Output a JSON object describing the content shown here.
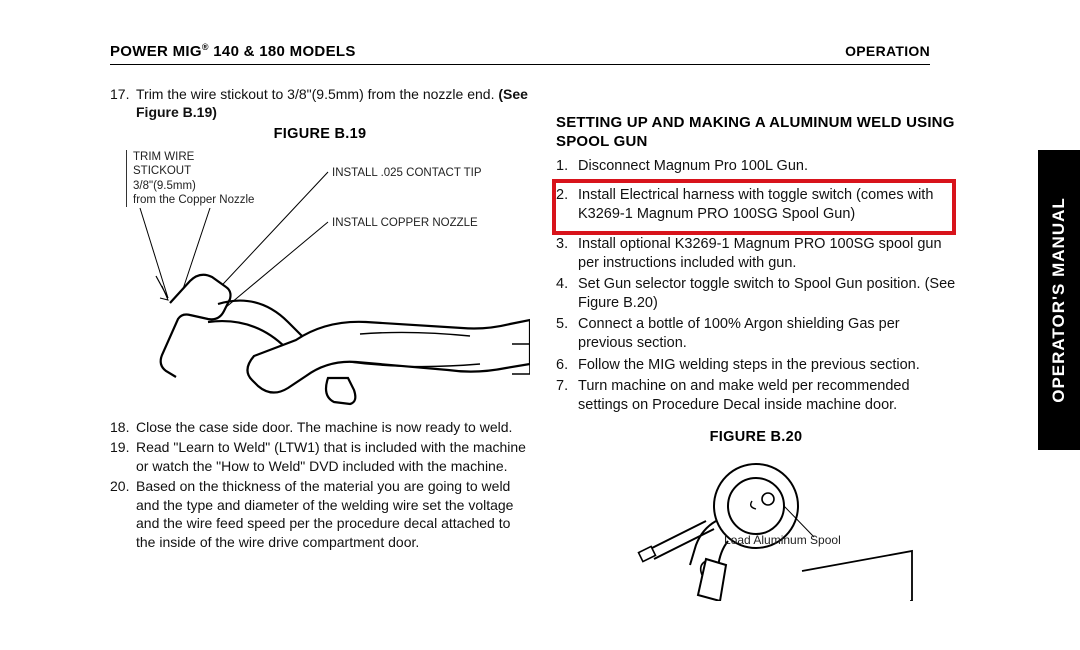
{
  "header": {
    "left_prefix": "POWER MIG",
    "left_suffix": " 140 & 180 MODELS",
    "right": "OPERATION"
  },
  "side_tab": "OPERATOR'S MANUAL",
  "colors": {
    "highlight_border": "#d8131b",
    "text": "#111111",
    "rule": "#000000"
  },
  "left": {
    "step17_pre": "Trim the wire stickout to 3/8\"(9.5mm) from the nozzle end. ",
    "step17_bold": "(See Figure B.19)",
    "figure19_title": "FIGURE B.19",
    "fig19_labels": {
      "trim1": "TRIM WIRE",
      "trim2": "STICKOUT",
      "trim3": "3/8\"(9.5mm)",
      "trim4": "from the Copper Nozzle",
      "install_tip": "INSTALL .025 CONTACT TIP",
      "install_nozzle": "INSTALL COPPER NOZZLE"
    },
    "step18": "Close the case side door. The machine is now ready to weld.",
    "step19": "Read \"Learn to Weld\" (LTW1) that is included with the machine or watch the \"How to Weld\" DVD included with the machine.",
    "step20": "Based on the thickness of the material you are going to weld and the type and diameter of the welding wire set the voltage and the wire feed speed per the procedure decal attached to the inside of the wire drive compartment door."
  },
  "right": {
    "section_title": "SETTING UP AND MAKING A ALUMINUM WELD USING SPOOL GUN",
    "steps": [
      "Disconnect Magnum Pro 100L Gun.",
      "Install Electrical harness with toggle switch (comes with K3269-1 Magnum PRO 100SG Spool Gun)",
      "Install optional K3269-1 Magnum PRO 100SG spool gun per instructions included with gun.",
      "Set Gun selector toggle switch to Spool Gun position. (See Figure B.20)",
      "Connect a bottle of 100% Argon shielding Gas per previous section.",
      "Follow the MIG welding steps in the previous section.",
      "Turn machine on and make weld per recommended settings on Procedure Decal inside machine door."
    ],
    "highlight_index": 1,
    "figure20_title": "FIGURE B.20",
    "fig20_label": "Load Aluminum Spool"
  }
}
